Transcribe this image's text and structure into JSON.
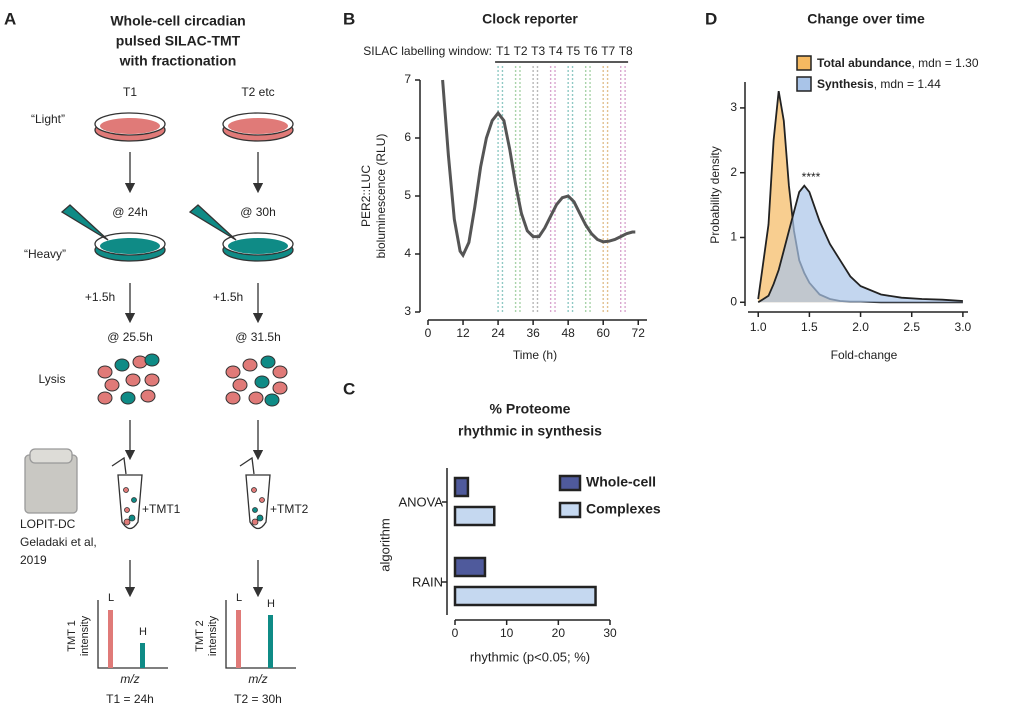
{
  "diagram": {
    "panel_label": "A",
    "title_lines": [
      "Whole-cell circadian",
      "pulsed SILAC-TMT",
      "with fractionation"
    ],
    "row_labels": {
      "light": "“Light”",
      "heavy": "“Heavy”",
      "lysis": "Lysis"
    },
    "instrument": [
      "LOPIT-DC",
      "Geladaki et al,",
      "2019"
    ],
    "columns": [
      {
        "header": "T1",
        "pulse": "@ 24h",
        "chase": "+1.5h",
        "harvest": "@ 25.5h",
        "tag": "+TMT1",
        "ylabel": [
          "TMT 1",
          "intensity"
        ],
        "peaks": [
          "L",
          "H"
        ],
        "xlabel": "m/z",
        "result": "T1 = 24h"
      },
      {
        "header": "T2 etc",
        "pulse": "@ 30h",
        "chase": "+1.5h",
        "harvest": "@ 31.5h",
        "tag": "+TMT2",
        "ylabel": [
          "TMT 2",
          "intensity"
        ],
        "peaks": [
          "L",
          "H"
        ],
        "xlabel": "m/z",
        "result": "T2 = 30h"
      }
    ]
  },
  "chart_data": [
    {
      "panel_label": "B",
      "type": "line",
      "title": "Clock reporter",
      "annotation": "SILAC labelling window:",
      "windows": [
        {
          "label": "T1",
          "start": 24,
          "end": 25.5,
          "color": "#8fc9c4"
        },
        {
          "label": "T2",
          "start": 30,
          "end": 31.5,
          "color": "#a9d3a9"
        },
        {
          "label": "T3",
          "start": 36,
          "end": 37.5,
          "color": "#b8b8b8"
        },
        {
          "label": "T4",
          "start": 42,
          "end": 43.5,
          "color": "#d9a6cf"
        },
        {
          "label": "T5",
          "start": 48,
          "end": 49.5,
          "color": "#8fc9c4"
        },
        {
          "label": "T6",
          "start": 54,
          "end": 55.5,
          "color": "#a9d3a9"
        },
        {
          "label": "T7",
          "start": 60,
          "end": 61.5,
          "color": "#e2c08f"
        },
        {
          "label": "T8",
          "start": 66,
          "end": 67.5,
          "color": "#d9a6cf"
        }
      ],
      "x": [
        5,
        7,
        9,
        11,
        12,
        14,
        16,
        18,
        20,
        22,
        24,
        26,
        28,
        30,
        32,
        34,
        36,
        38,
        40,
        42,
        44,
        46,
        48,
        50,
        52,
        54,
        56,
        58,
        60,
        62,
        64,
        66,
        68,
        70,
        71
      ],
      "series": [
        {
          "color": "#555555",
          "values": [
            7.0,
            5.7,
            4.6,
            4.05,
            3.98,
            4.2,
            4.8,
            5.5,
            6.0,
            6.3,
            6.43,
            6.3,
            5.8,
            5.2,
            4.7,
            4.4,
            4.3,
            4.3,
            4.45,
            4.65,
            4.85,
            4.97,
            5.0,
            4.9,
            4.7,
            4.5,
            4.35,
            4.25,
            4.21,
            4.22,
            4.25,
            4.3,
            4.35,
            4.38,
            4.38
          ]
        }
      ],
      "xlim": [
        0,
        75
      ],
      "xticks": [
        0,
        12,
        24,
        36,
        48,
        60,
        72
      ],
      "ylim": [
        3,
        7
      ],
      "yticks": [
        3,
        4,
        5,
        6,
        7
      ],
      "xlabel": "Time (h)",
      "ylabel": [
        "PER2::LUC",
        "bioluminescence (RLU)"
      ]
    },
    {
      "panel_label": "C",
      "type": "hbar",
      "title": [
        "% Proteome",
        "rhythmic in synthesis"
      ],
      "categories": [
        "ANOVA",
        "RAIN"
      ],
      "series": [
        {
          "name": "Whole-cell",
          "color": "#4f5a9c",
          "values": [
            2.5,
            5.8
          ]
        },
        {
          "name": "Complexes",
          "color": "#c5d8f0",
          "values": [
            7.6,
            27.2
          ]
        }
      ],
      "xlim": [
        0,
        30
      ],
      "xticks": [
        0,
        10,
        20,
        30
      ],
      "xlabel": "rhythmic (p<0.05; %)",
      "ylabel": "algorithm"
    },
    {
      "panel_label": "D",
      "type": "area",
      "title": "Change over time",
      "annotation": "****",
      "x": [
        1.0,
        1.1,
        1.15,
        1.2,
        1.25,
        1.3,
        1.35,
        1.4,
        1.45,
        1.5,
        1.6,
        1.7,
        1.8,
        1.9,
        2.0,
        2.2,
        2.4,
        2.6,
        2.8,
        3.0
      ],
      "series": [
        {
          "name": "Total abundance",
          "note": ", mdn = 1.30",
          "color": "#f5b961",
          "values": [
            0.05,
            1.2,
            2.5,
            3.26,
            2.8,
            1.8,
            1.1,
            0.65,
            0.45,
            0.3,
            0.12,
            0.05,
            0.02,
            0.01,
            0.01,
            0,
            0,
            0,
            0,
            0
          ]
        },
        {
          "name": "Synthesis",
          "note": ", mdn = 1.44",
          "color": "#a9c4e8",
          "values": [
            0,
            0.1,
            0.28,
            0.5,
            0.8,
            1.1,
            1.4,
            1.7,
            1.8,
            1.7,
            1.25,
            0.9,
            0.65,
            0.4,
            0.25,
            0.12,
            0.07,
            0.05,
            0.04,
            0.02
          ]
        }
      ],
      "xlim": [
        0.9,
        3.05
      ],
      "xticks": [
        {
          "value": 1,
          "label": "1.0"
        },
        1.5,
        {
          "value": 2,
          "label": "2.0"
        },
        2.5,
        {
          "value": 3,
          "label": "3.0"
        }
      ],
      "ylim": [
        -0.15,
        3.4
      ],
      "yticks": [
        0,
        1,
        2,
        3
      ],
      "xlabel": "Fold-change",
      "ylabel": "Probability density"
    }
  ]
}
